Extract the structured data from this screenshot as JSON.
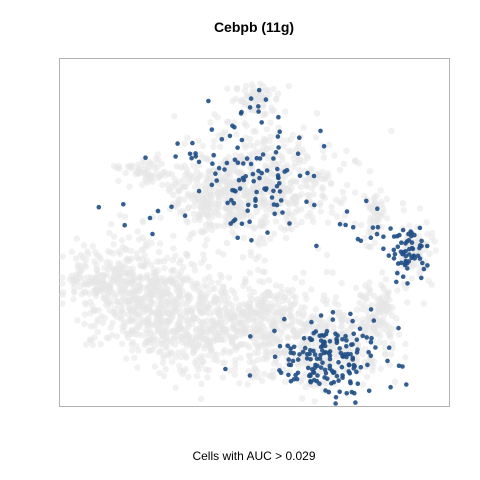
{
  "chart_data": {
    "type": "scatter",
    "title": "Cebpb (11g)",
    "caption": "Cells with AUC > 0.029",
    "xlabel": "",
    "ylabel": "",
    "xlim": [
      0,
      390
    ],
    "ylim": [
      0,
      348
    ],
    "grid": false,
    "axes_ticks": false,
    "colors": {
      "background_cells": "#e6e6e6",
      "highlight_cells": "#1f4e85",
      "frame": "#b3b3b3"
    },
    "series": [
      {
        "role": "all cells",
        "clusters": [
          {
            "cx": 85,
            "cy": 235,
            "rx": 62,
            "ry": 50,
            "n": 560
          },
          {
            "cx": 140,
            "cy": 270,
            "rx": 60,
            "ry": 42,
            "n": 320
          },
          {
            "cx": 35,
            "cy": 220,
            "rx": 25,
            "ry": 18,
            "n": 70
          },
          {
            "cx": 210,
            "cy": 265,
            "rx": 58,
            "ry": 45,
            "n": 360
          },
          {
            "cx": 270,
            "cy": 290,
            "rx": 55,
            "ry": 35,
            "n": 260
          },
          {
            "cx": 320,
            "cy": 255,
            "rx": 20,
            "ry": 30,
            "n": 100
          },
          {
            "cx": 355,
            "cy": 195,
            "rx": 18,
            "ry": 30,
            "n": 90
          },
          {
            "cx": 205,
            "cy": 125,
            "rx": 70,
            "ry": 50,
            "n": 520
          },
          {
            "cx": 155,
            "cy": 140,
            "rx": 45,
            "ry": 35,
            "n": 200
          },
          {
            "cx": 315,
            "cy": 155,
            "rx": 12,
            "ry": 25,
            "n": 50
          },
          {
            "cx": 85,
            "cy": 112,
            "rx": 25,
            "ry": 12,
            "n": 60
          },
          {
            "cx": 195,
            "cy": 38,
            "rx": 22,
            "ry": 15,
            "n": 70
          }
        ]
      },
      {
        "role": "cells with AUC > 0.029",
        "clusters": [
          {
            "cx": 270,
            "cy": 300,
            "rx": 55,
            "ry": 35,
            "n": 170
          },
          {
            "cx": 345,
            "cy": 197,
            "rx": 18,
            "ry": 25,
            "n": 60
          },
          {
            "cx": 210,
            "cy": 130,
            "rx": 55,
            "ry": 40,
            "n": 70
          },
          {
            "cx": 160,
            "cy": 100,
            "rx": 45,
            "ry": 35,
            "n": 30
          },
          {
            "cx": 190,
            "cy": 50,
            "rx": 25,
            "ry": 20,
            "n": 10
          },
          {
            "cx": 300,
            "cy": 165,
            "rx": 25,
            "ry": 25,
            "n": 12
          },
          {
            "cx": 80,
            "cy": 150,
            "rx": 40,
            "ry": 40,
            "n": 8
          }
        ]
      }
    ]
  }
}
